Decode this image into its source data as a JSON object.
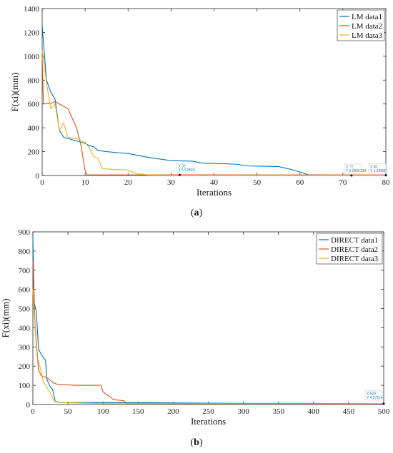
{
  "colors": {
    "series1": "#0072BD",
    "series2": "#D95319",
    "series3": "#EDB120"
  },
  "chart_data": [
    {
      "type": "line",
      "caption_letter": "a",
      "xlabel": "Iterations",
      "ylabel": "F(xi)(mm)",
      "xlim": [
        0,
        80
      ],
      "ylim": [
        0,
        1400
      ],
      "xticks": [
        0,
        10,
        20,
        30,
        40,
        50,
        60,
        70,
        80
      ],
      "yticks": [
        0,
        200,
        400,
        600,
        800,
        1000,
        1200,
        1400
      ],
      "legend_position": "top-right",
      "series": [
        {
          "name": "LM data1",
          "points": [
            [
              0,
              1260
            ],
            [
              1,
              800
            ],
            [
              2,
              700
            ],
            [
              3,
              640
            ],
            [
              4,
              380
            ],
            [
              5,
              320
            ],
            [
              7,
              300
            ],
            [
              8,
              290
            ],
            [
              10,
              270
            ],
            [
              11,
              250
            ],
            [
              12,
              240
            ],
            [
              13,
              210
            ],
            [
              15,
              200
            ],
            [
              18,
              190
            ],
            [
              20,
              185
            ],
            [
              22,
              170
            ],
            [
              25,
              150
            ],
            [
              30,
              125
            ],
            [
              35,
              120
            ],
            [
              37,
              105
            ],
            [
              45,
              95
            ],
            [
              48,
              80
            ],
            [
              55,
              75
            ],
            [
              58,
              50
            ],
            [
              60,
              30
            ],
            [
              62,
              5
            ],
            [
              65,
              4
            ],
            [
              70,
              3
            ],
            [
              72,
              0.093
            ],
            [
              80,
              0.05
            ]
          ]
        },
        {
          "name": "LM data2",
          "points": [
            [
              0,
              1000
            ],
            [
              0.3,
              600
            ],
            [
              2,
              605
            ],
            [
              3,
              620
            ],
            [
              4,
              600
            ],
            [
              5,
              580
            ],
            [
              6,
              560
            ],
            [
              8,
              400
            ],
            [
              9,
              260
            ],
            [
              10,
              40
            ],
            [
              10.5,
              5
            ],
            [
              12,
              5
            ],
            [
              20,
              5
            ],
            [
              32,
              5.5
            ],
            [
              80,
              5
            ]
          ]
        },
        {
          "name": "LM data3",
          "points": [
            [
              0,
              1050
            ],
            [
              1,
              780
            ],
            [
              2,
              560
            ],
            [
              3,
              600
            ],
            [
              4,
              380
            ],
            [
              5,
              440
            ],
            [
              6,
              320
            ],
            [
              8,
              310
            ],
            [
              10,
              280
            ],
            [
              11,
              230
            ],
            [
              12,
              160
            ],
            [
              13,
              140
            ],
            [
              14,
              60
            ],
            [
              15,
              55
            ],
            [
              20,
              45
            ],
            [
              22,
              15
            ],
            [
              25,
              5
            ],
            [
              30,
              3
            ],
            [
              60,
              1.5
            ],
            [
              80,
              1.3
            ]
          ]
        }
      ],
      "datatips": [
        {
          "x_label": "X 32",
          "y_label": "Y 5.52809",
          "x": 32,
          "y": 5.52809
        },
        {
          "x_label": "X 72",
          "y_label": "Y 0.0930138",
          "x": 72,
          "y": 0.0930138
        },
        {
          "x_label": "X 80",
          "y_label": "Y 1.28886",
          "x": 80,
          "y": 1.28886
        }
      ]
    },
    {
      "type": "line",
      "caption_letter": "b",
      "xlabel": "Iterations",
      "ylabel": "F(xi)(mm)",
      "xlim": [
        0,
        500
      ],
      "ylim": [
        0,
        900
      ],
      "xticks": [
        0,
        50,
        100,
        150,
        200,
        250,
        300,
        350,
        400,
        450,
        500
      ],
      "yticks": [
        0,
        100,
        200,
        300,
        400,
        500,
        600,
        700,
        800,
        900
      ],
      "legend_position": "top-right",
      "series": [
        {
          "name": "DIRECT data1",
          "points": [
            [
              0,
              880
            ],
            [
              2,
              530
            ],
            [
              5,
              480
            ],
            [
              8,
              290
            ],
            [
              12,
              260
            ],
            [
              18,
              230
            ],
            [
              20,
              130
            ],
            [
              25,
              90
            ],
            [
              28,
              80
            ],
            [
              32,
              15
            ],
            [
              40,
              10
            ],
            [
              100,
              10
            ],
            [
              150,
              10
            ],
            [
              200,
              8
            ],
            [
              300,
              6
            ],
            [
              400,
              6
            ],
            [
              420,
              5
            ],
            [
              500,
              4
            ]
          ]
        },
        {
          "name": "DIRECT data2",
          "points": [
            [
              0,
              750
            ],
            [
              3,
              420
            ],
            [
              8,
              180
            ],
            [
              12,
              150
            ],
            [
              20,
              140
            ],
            [
              28,
              115
            ],
            [
              35,
              105
            ],
            [
              60,
              100
            ],
            [
              97,
              100
            ],
            [
              100,
              65
            ],
            [
              110,
              40
            ],
            [
              115,
              25
            ],
            [
              130,
              20
            ],
            [
              132,
              5
            ],
            [
              200,
              5
            ],
            [
              500,
              4
            ]
          ]
        },
        {
          "name": "DIRECT data3",
          "points": [
            [
              0,
              600
            ],
            [
              3,
              400
            ],
            [
              6,
              250
            ],
            [
              10,
              200
            ],
            [
              15,
              120
            ],
            [
              25,
              60
            ],
            [
              30,
              20
            ],
            [
              40,
              10
            ],
            [
              100,
              5
            ],
            [
              200,
              4
            ],
            [
              400,
              4
            ],
            [
              500,
              4
            ]
          ]
        }
      ],
      "datatips": [
        {
          "x_label": "X 500",
          "y_label": "Y 4.07514",
          "x": 500,
          "y": 4.07514
        }
      ]
    }
  ]
}
